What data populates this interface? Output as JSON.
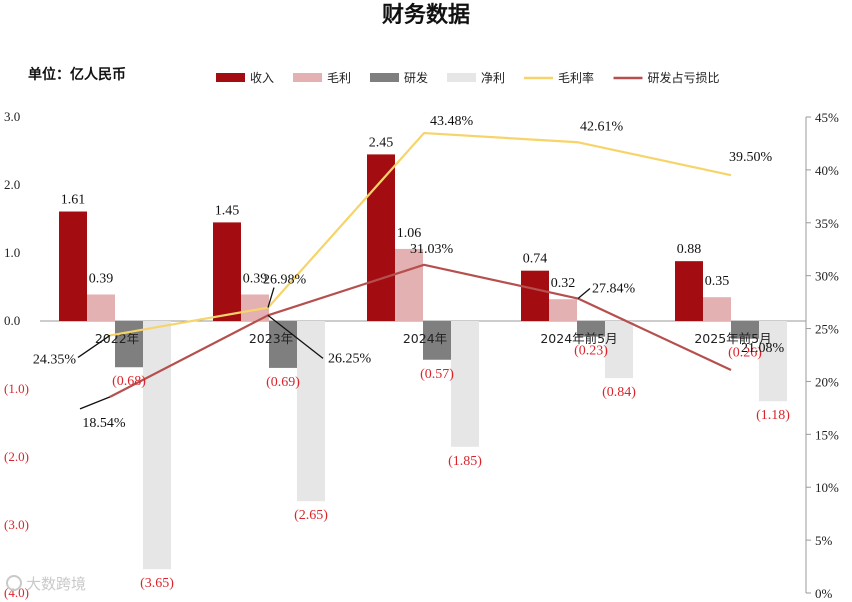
{
  "chart_data": {
    "type": "bar",
    "title": "财务数据",
    "unit_label": "单位：亿人民币",
    "categories": [
      "2022年",
      "2023年",
      "2024年",
      "2024年前5月",
      "2025年前5月"
    ],
    "series": [
      {
        "name": "收入",
        "kind": "bar",
        "axis": "left",
        "color": "#a30d12",
        "values": [
          1.61,
          1.45,
          2.45,
          0.74,
          0.88
        ],
        "labels": [
          "1.61",
          "1.45",
          "2.45",
          "0.74",
          "0.88"
        ]
      },
      {
        "name": "毛利",
        "kind": "bar",
        "axis": "left",
        "color": "#e3b1b1",
        "values": [
          0.39,
          0.39,
          1.06,
          0.32,
          0.35
        ],
        "labels": [
          "0.39",
          "0.39",
          "1.06",
          "0.32",
          "0.35"
        ]
      },
      {
        "name": "研发",
        "kind": "bar",
        "axis": "left",
        "color": "#7f7f7f",
        "values": [
          -0.68,
          -0.69,
          -0.57,
          -0.23,
          -0.26
        ],
        "labels": [
          "(0.68)",
          "(0.69)",
          "(0.57)",
          "(0.23)",
          "(0.26)"
        ]
      },
      {
        "name": "净利",
        "kind": "bar",
        "axis": "left",
        "color": "#e6e6e6",
        "values": [
          -3.65,
          -2.65,
          -1.85,
          -0.84,
          -1.18
        ],
        "labels": [
          "(3.65)",
          "(2.65)",
          "(1.85)",
          "(0.84)",
          "(1.18)"
        ]
      },
      {
        "name": "毛利率",
        "kind": "line",
        "axis": "right",
        "color": "#f7d46a",
        "values": [
          24.35,
          26.98,
          43.48,
          42.61,
          39.5
        ],
        "labels": [
          "24.35%",
          "26.98%",
          "43.48%",
          "42.61%",
          "39.50%"
        ]
      },
      {
        "name": "研发占亏损比",
        "kind": "line",
        "axis": "right",
        "color": "#b5504e",
        "values": [
          18.54,
          26.25,
          31.03,
          27.84,
          21.08
        ],
        "labels": [
          "18.54%",
          "26.25%",
          "31.03%",
          "27.84%",
          "21.08%"
        ]
      }
    ],
    "y_left": {
      "min": -4.0,
      "max": 3.0,
      "ticks": [
        3.0,
        2.0,
        1.0,
        0.0,
        -1.0,
        -2.0,
        -3.0,
        -4.0
      ],
      "tick_labels": [
        "3.0",
        "2.0",
        "1.0",
        "0.0",
        "(1.0)",
        "(2.0)",
        "(3.0)",
        "(4.0)"
      ]
    },
    "y_right": {
      "min": 0,
      "max": 45,
      "ticks": [
        45,
        40,
        35,
        30,
        25,
        20,
        15,
        10,
        5,
        0
      ],
      "tick_labels": [
        "45%",
        "40%",
        "35%",
        "30%",
        "25%",
        "20%",
        "15%",
        "10%",
        "5%",
        "0%"
      ]
    },
    "legend_position": "top",
    "grid": false
  },
  "watermark": "大数跨境"
}
